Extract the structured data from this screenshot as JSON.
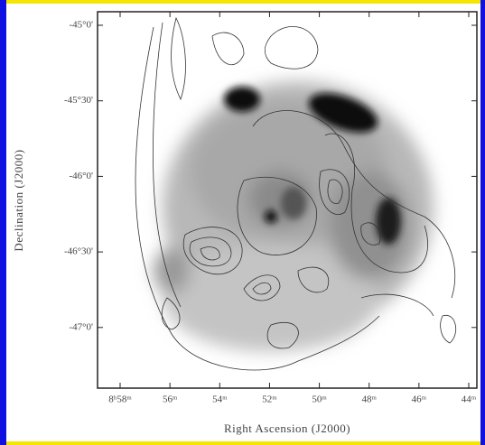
{
  "figure": {
    "y_axis_label": "Declination (J2000)",
    "x_axis_label": "Right Ascension (J2000)",
    "y_ticks": [
      "-45°0'",
      "-45°30'",
      "-46°0'",
      "-46°30'",
      "-47°0'"
    ],
    "x_ticks": [
      "8ʰ58ᵐ",
      "56ᵐ",
      "54ᵐ",
      "52ᵐ",
      "50ᵐ",
      "48ᵐ",
      "46ᵐ",
      "44ᵐ"
    ]
  }
}
